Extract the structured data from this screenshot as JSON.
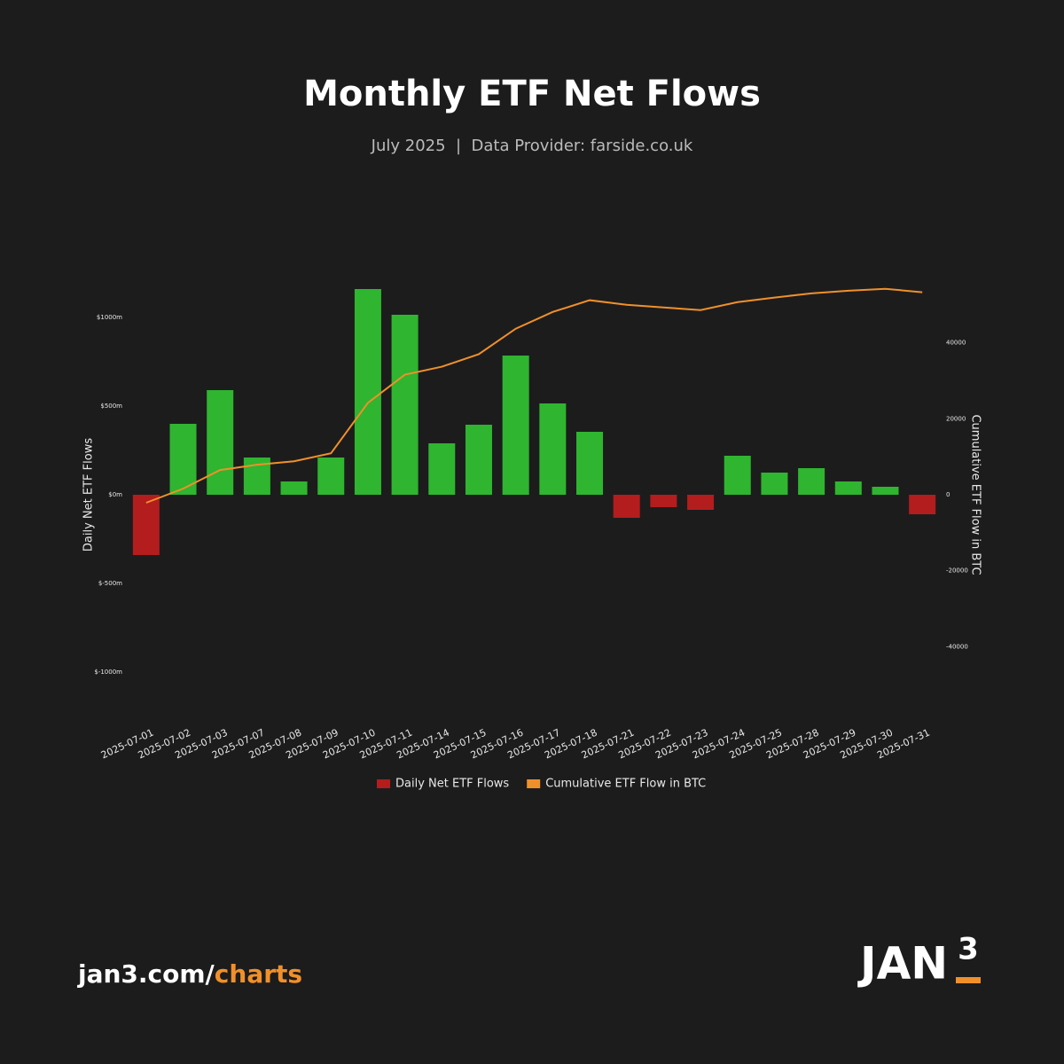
{
  "chart_data": {
    "type": "bar-line",
    "title": "Monthly ETF Net Flows",
    "subtitle": "July 2025  |  Data Provider: farside.co.uk",
    "y_label": "Daily Net ETF Flows",
    "y2_label": "Cumulative ETF Flow in BTC",
    "categories": [
      "2025-07-01",
      "2025-07-02",
      "2025-07-03",
      "2025-07-07",
      "2025-07-08",
      "2025-07-09",
      "2025-07-10",
      "2025-07-11",
      "2025-07-14",
      "2025-07-15",
      "2025-07-16",
      "2025-07-17",
      "2025-07-18",
      "2025-07-21",
      "2025-07-22",
      "2025-07-23",
      "2025-07-24",
      "2025-07-25",
      "2025-07-28",
      "2025-07-29",
      "2025-07-30",
      "2025-07-31"
    ],
    "series": [
      {
        "name": "Daily Net ETF Flows",
        "type": "bar",
        "color": "#b31d1d",
        "positive_color": "#2fb52f",
        "values": [
          -340,
          400,
          590,
          210,
          75,
          210,
          1160,
          1015,
          290,
          395,
          785,
          515,
          355,
          -130,
          -70,
          -85,
          220,
          125,
          150,
          75,
          45,
          -110
        ]
      },
      {
        "name": "Cumulative ETF Flow in BTC",
        "type": "line",
        "axis": "y2",
        "color": "#f0902a",
        "values": [
          -2100,
          1600,
          6500,
          7900,
          8800,
          10900,
          24200,
          31600,
          33700,
          37000,
          43700,
          48100,
          51200,
          50000,
          49300,
          48600,
          50700,
          51900,
          53000,
          53700,
          54200,
          53300
        ]
      }
    ],
    "ylim": [
      -1200,
      1200
    ],
    "yticks": [
      {
        "value": -1000,
        "label": "$-1000m"
      },
      {
        "value": -500,
        "label": "$-500m"
      },
      {
        "value": 0,
        "label": "$0m"
      },
      {
        "value": 500,
        "label": "$500m"
      },
      {
        "value": 1000,
        "label": "$1000m"
      }
    ],
    "y2lim": [
      -56000,
      56000
    ],
    "y2ticks": [
      -40000,
      -20000,
      0,
      20000,
      40000
    ]
  },
  "footer": {
    "site": "jan3.com/",
    "site_accent": "charts",
    "logo": "JAN",
    "logo_accent": "3"
  }
}
